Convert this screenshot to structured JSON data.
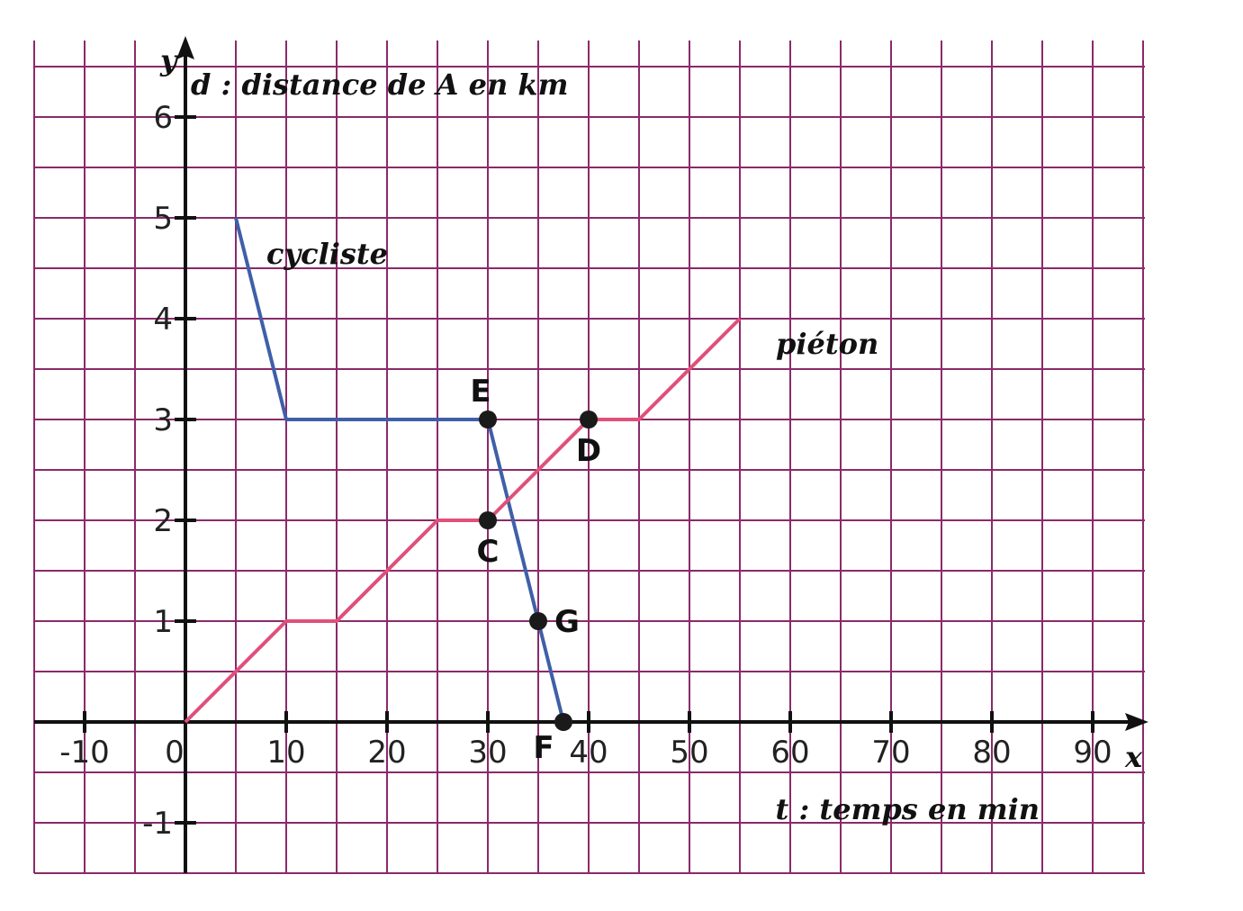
{
  "chart_data": {
    "type": "line",
    "title": "",
    "x_axis": {
      "name": "x",
      "label": "t : temps en min",
      "ticks": [
        -10,
        0,
        10,
        20,
        30,
        40,
        50,
        60,
        70,
        80,
        90
      ],
      "tick_labels": [
        "-10",
        "0",
        "10",
        "20",
        "30",
        "40",
        "50",
        "60",
        "70",
        "80",
        "90"
      ],
      "range": [
        -17.5,
        95
      ]
    },
    "y_axis": {
      "name": "y",
      "label": "d : distance de A en km",
      "ticks": [
        -1,
        1,
        2,
        3,
        4,
        5,
        6
      ],
      "tick_labels": [
        "-1",
        "1",
        "2",
        "3",
        "4",
        "5",
        "6"
      ],
      "range": [
        -1.5,
        6.8
      ]
    },
    "grid": true,
    "series": [
      {
        "name": "cycliste",
        "color": "#3f5fa8",
        "x": [
          5,
          10,
          30,
          37.5
        ],
        "y": [
          5,
          3,
          3,
          0
        ]
      },
      {
        "name": "piéton",
        "color": "#e0507a",
        "x": [
          0,
          10,
          15,
          25,
          30,
          40,
          45,
          55
        ],
        "y": [
          0,
          1,
          1,
          2,
          2,
          3,
          3,
          4
        ]
      }
    ],
    "points": [
      {
        "label": "E",
        "x": 30,
        "y": 3
      },
      {
        "label": "D",
        "x": 40,
        "y": 3
      },
      {
        "label": "C",
        "x": 30,
        "y": 2
      },
      {
        "label": "G",
        "x": 35,
        "y": 1
      },
      {
        "label": "F",
        "x": 37.5,
        "y": 0
      }
    ]
  }
}
